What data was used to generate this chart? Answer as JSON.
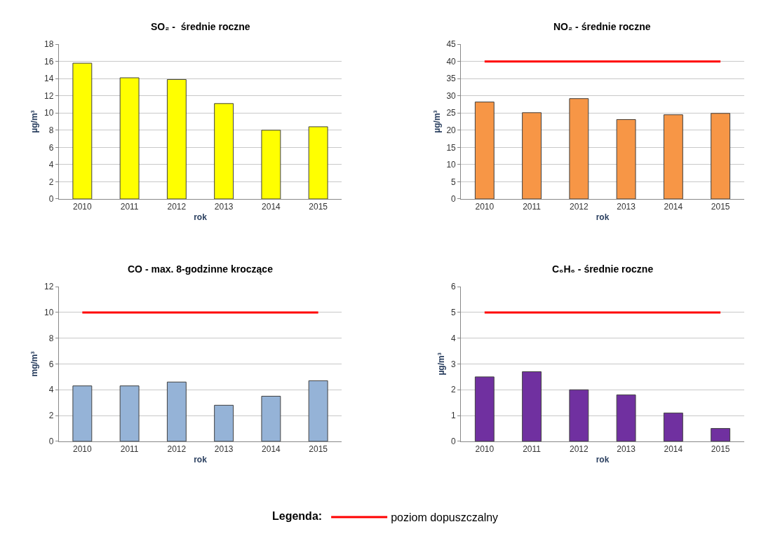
{
  "chart_data": [
    {
      "type": "bar",
      "title": "SO₂ -  średnie roczne",
      "xlabel": "rok",
      "ylabel": "µg/m³",
      "categories": [
        "2010",
        "2011",
        "2012",
        "2013",
        "2014",
        "2015"
      ],
      "series": [
        {
          "color": "#ffff00",
          "values": [
            15.8,
            14.1,
            13.9,
            11.1,
            8.0,
            8.4
          ]
        }
      ],
      "ylim": [
        0,
        18
      ],
      "yticks": [
        0,
        2,
        4,
        6,
        8,
        10,
        12,
        14,
        16,
        18
      ],
      "grid": "y"
    },
    {
      "type": "bar",
      "title": "NO₂ - średnie roczne",
      "xlabel": "rok",
      "ylabel": "µg/m³",
      "categories": [
        "2010",
        "2011",
        "2012",
        "2013",
        "2014",
        "2015"
      ],
      "series": [
        {
          "color": "#f79646",
          "values": [
            28.2,
            25.1,
            29.2,
            23.1,
            24.5,
            24.9
          ]
        },
        {
          "type": "line",
          "name": "poziom dopuszczalny",
          "color": "#ff0000",
          "values": [
            40,
            40,
            40,
            40,
            40,
            40
          ]
        }
      ],
      "ylim": [
        0,
        45
      ],
      "yticks": [
        0,
        5,
        10,
        15,
        20,
        25,
        30,
        35,
        40,
        45
      ],
      "grid": "y",
      "legend": "bottom",
      "legend_title": "Legenda:"
    },
    {
      "type": "bar",
      "title": "CO - max. 8-godzinne kroczące",
      "xlabel": "rok",
      "ylabel": "mg/m³",
      "categories": [
        "2010",
        "2011",
        "2012",
        "2013",
        "2014",
        "2015"
      ],
      "series": [
        {
          "color": "#95b3d7",
          "values": [
            4.3,
            4.3,
            4.6,
            2.8,
            3.5,
            4.7
          ]
        },
        {
          "type": "line",
          "color": "#ff0000",
          "values": [
            10,
            10,
            10,
            10,
            10,
            10
          ]
        }
      ],
      "ylim": [
        0,
        12
      ],
      "yticks": [
        0,
        2,
        4,
        6,
        8,
        10,
        12
      ],
      "grid": "y"
    },
    {
      "type": "bar",
      "title": "C₆H₆ - średnie roczne",
      "xlabel": "rok",
      "ylabel": "µg/m³",
      "categories": [
        "2010",
        "2011",
        "2012",
        "2013",
        "2014",
        "2015"
      ],
      "series": [
        {
          "color": "#7030a0",
          "values": [
            2.5,
            2.7,
            2.0,
            1.8,
            1.1,
            0.5
          ]
        },
        {
          "type": "line",
          "color": "#ff0000",
          "values": [
            5,
            5,
            5,
            5,
            5,
            5
          ]
        }
      ],
      "ylim": [
        0,
        6
      ],
      "yticks": [
        0,
        1,
        2,
        3,
        4,
        5,
        6
      ],
      "grid": "y"
    }
  ]
}
